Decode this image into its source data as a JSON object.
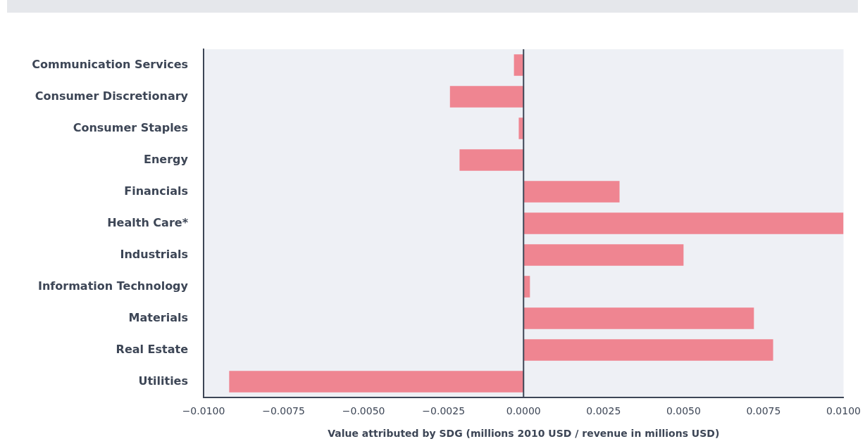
{
  "chart_data": {
    "type": "bar",
    "orientation": "horizontal",
    "xlabel": "Value attributed by SDG (millions 2010 USD / revenue in millions USD)",
    "categories": [
      "Communication Services",
      "Consumer Discretionary",
      "Consumer Staples",
      "Energy",
      "Financials",
      "Health Care*",
      "Industrials",
      "Information Technology",
      "Materials",
      "Real Estate",
      "Utilities"
    ],
    "values": [
      -0.0003,
      -0.0023,
      -0.00015,
      -0.002,
      0.003,
      0.01,
      0.005,
      0.0002,
      0.0072,
      0.0078,
      -0.0092
    ],
    "color": "#ef8591",
    "xlim": [
      -0.01,
      0.01
    ],
    "xticks": [
      {
        "value": -0.01,
        "label": "−0.0100"
      },
      {
        "value": -0.0075,
        "label": "−0.0075"
      },
      {
        "value": -0.005,
        "label": "−0.0050"
      },
      {
        "value": -0.0025,
        "label": "−0.0025"
      },
      {
        "value": 0,
        "label": "0.0000"
      },
      {
        "value": 0.0025,
        "label": "0.0025"
      },
      {
        "value": 0.005,
        "label": "0.0050"
      },
      {
        "value": 0.0075,
        "label": "0.0075"
      },
      {
        "value": 0.01,
        "label": "0.0100"
      }
    ],
    "ref_lines": [
      {
        "axis": "x",
        "value": 0,
        "color": "#3d4656"
      }
    ],
    "grid": false,
    "legend": false
  }
}
